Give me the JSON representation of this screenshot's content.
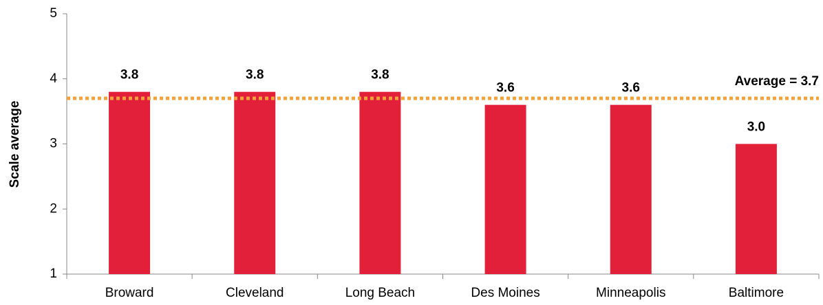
{
  "chart_data": {
    "type": "bar",
    "y_label": "Scale average",
    "categories": [
      "Broward",
      "Cleveland",
      "Long Beach",
      "Des Moines",
      "Minneapolis",
      "Baltimore"
    ],
    "values": [
      3.8,
      3.8,
      3.8,
      3.6,
      3.6,
      3.0
    ],
    "value_labels": [
      "3.8",
      "3.8",
      "3.8",
      "3.6",
      "3.6",
      "3.0"
    ],
    "color": "#e3203a",
    "ylim": [
      1,
      5
    ],
    "yticks": [
      1,
      2,
      3,
      4,
      5
    ],
    "reference_line": {
      "value": 3.7,
      "label": "Average = 3.7",
      "color": "#f4a23c"
    }
  }
}
